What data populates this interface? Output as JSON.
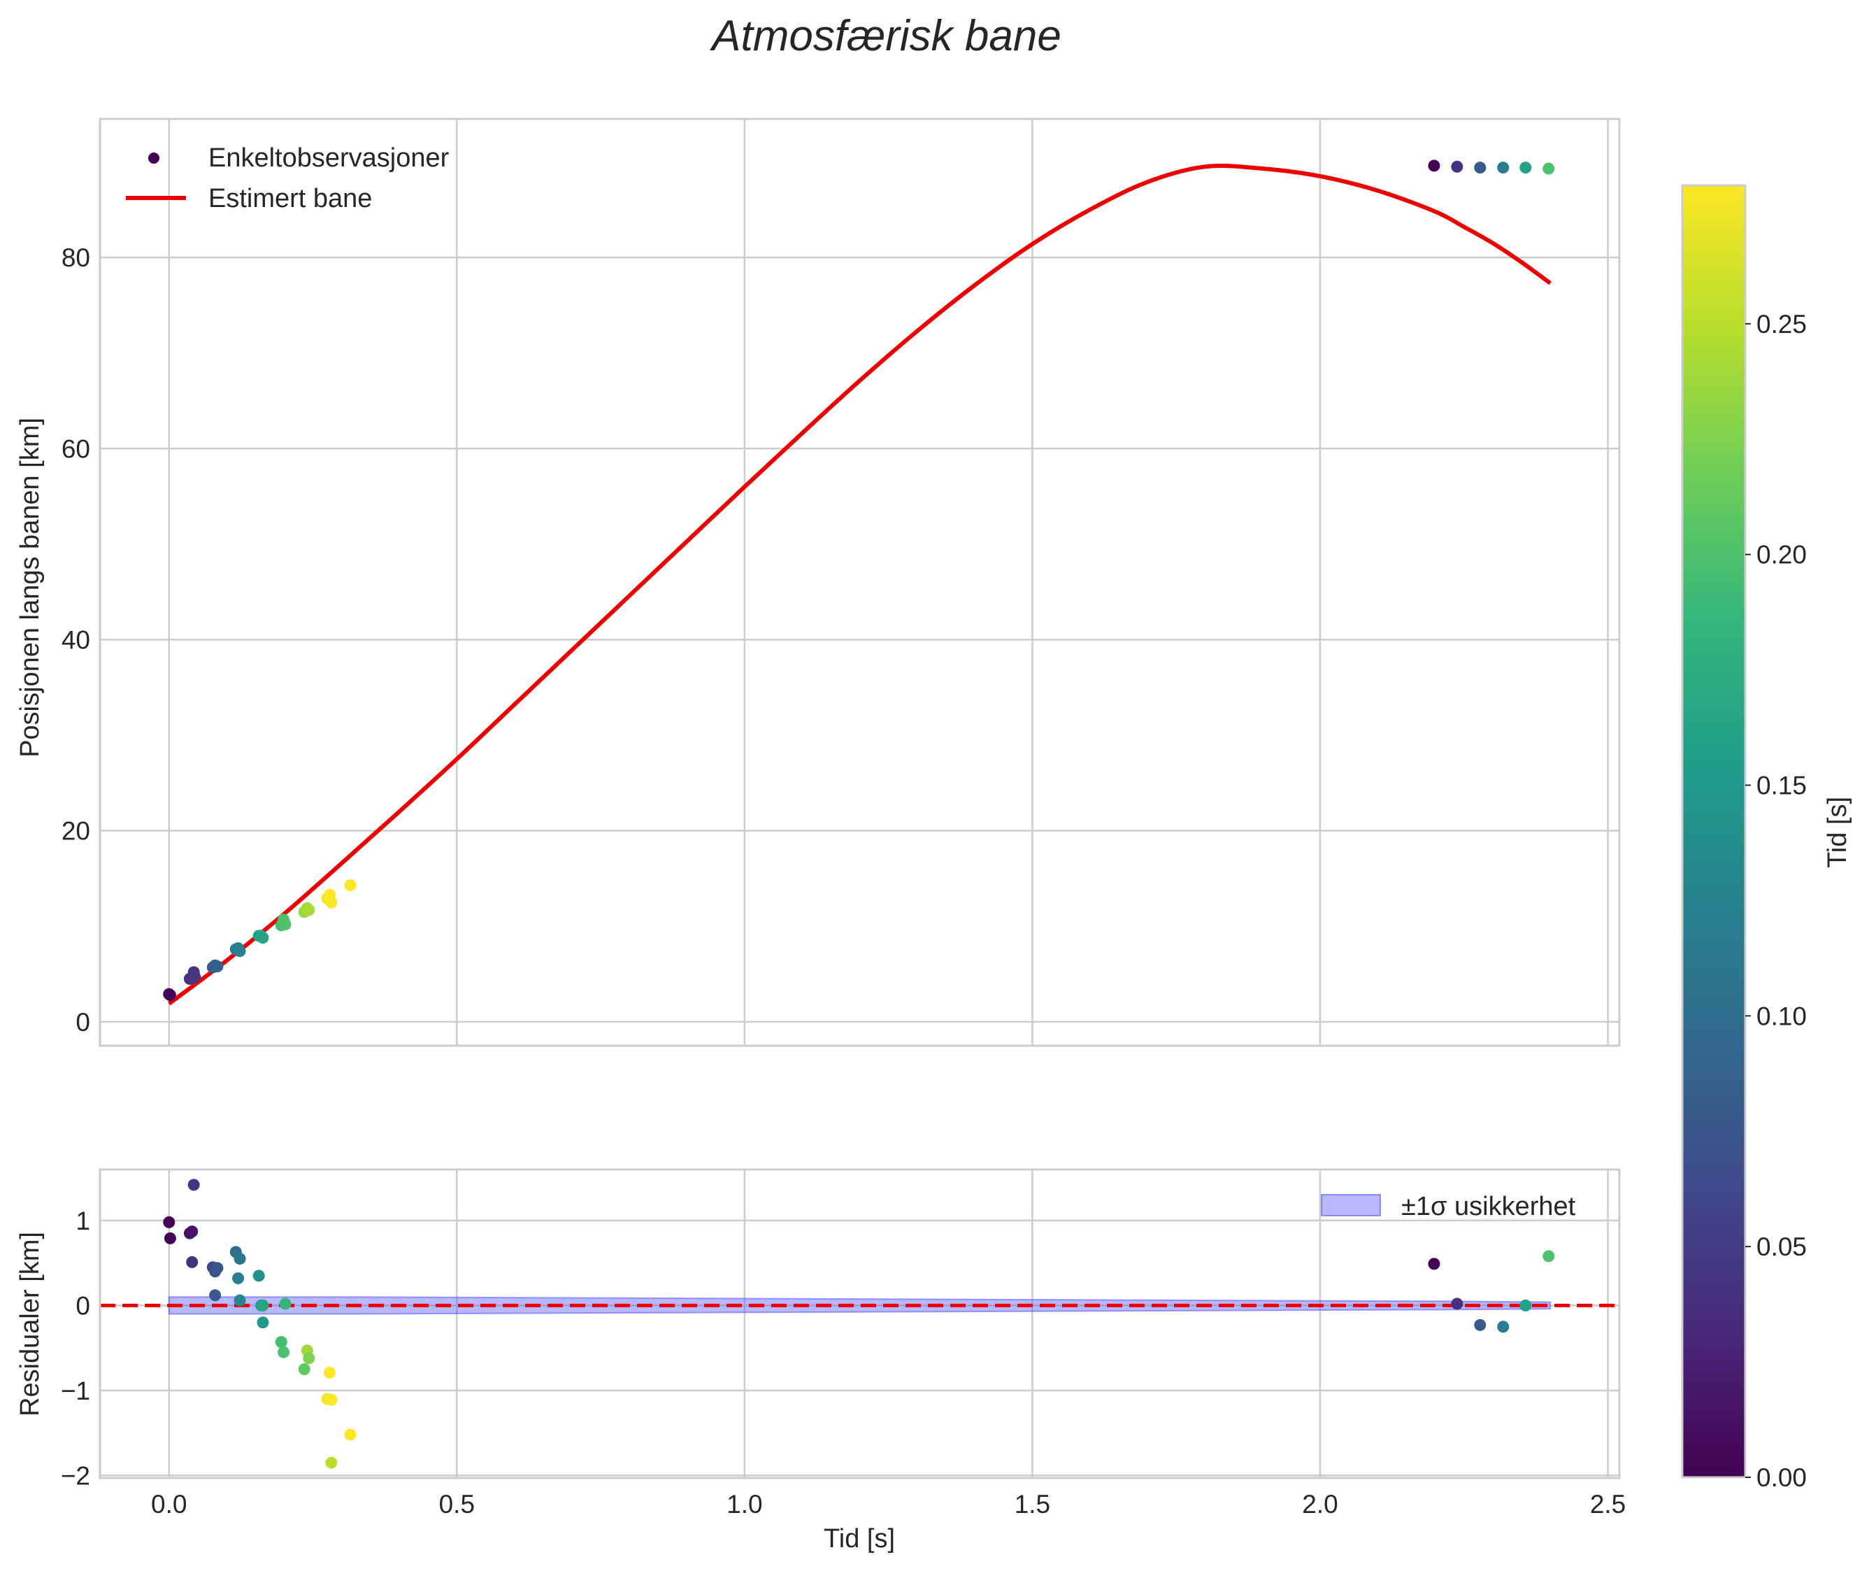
{
  "chart_data": [
    {
      "type": "scatter",
      "title": "Atmosfærisk bane",
      "xlabel": "",
      "ylabel": "Posisjonen langs banen [km]",
      "xlim": [
        -0.12,
        2.52
      ],
      "ylim": [
        -2.5,
        94.5
      ],
      "xticks": [
        0.0,
        0.5,
        1.0,
        1.5,
        2.0,
        2.5
      ],
      "yticks": [
        0,
        20,
        40,
        60,
        80
      ],
      "ytick_labels": [
        "0",
        "20",
        "40",
        "60",
        "80"
      ],
      "legend_location": "upper-left",
      "series": [
        {
          "name": "Enkeltobservasjoner",
          "kind": "scatter",
          "colored_by": "Tid [s]",
          "points": [
            {
              "x": 0.0,
              "y": 2.9,
              "c": 0.0
            },
            {
              "x": 0.002,
              "y": 2.8,
              "c": 0.002
            },
            {
              "x": 0.036,
              "y": 4.5,
              "c": 0.036
            },
            {
              "x": 0.04,
              "y": 4.6,
              "c": 0.04
            },
            {
              "x": 0.043,
              "y": 5.2,
              "c": 0.043
            },
            {
              "x": 0.045,
              "y": 4.7,
              "c": 0.045
            },
            {
              "x": 0.076,
              "y": 5.7,
              "c": 0.076
            },
            {
              "x": 0.08,
              "y": 5.9,
              "c": 0.08
            },
            {
              "x": 0.084,
              "y": 5.8,
              "c": 0.084
            },
            {
              "x": 0.116,
              "y": 7.6,
              "c": 0.116
            },
            {
              "x": 0.12,
              "y": 7.7,
              "c": 0.12
            },
            {
              "x": 0.123,
              "y": 7.4,
              "c": 0.123
            },
            {
              "x": 0.156,
              "y": 9.0,
              "c": 0.156
            },
            {
              "x": 0.16,
              "y": 9.0,
              "c": 0.16
            },
            {
              "x": 0.163,
              "y": 8.8,
              "c": 0.163
            },
            {
              "x": 0.195,
              "y": 10.1,
              "c": 0.195
            },
            {
              "x": 0.199,
              "y": 10.7,
              "c": 0.199
            },
            {
              "x": 0.202,
              "y": 10.2,
              "c": 0.202
            },
            {
              "x": 0.235,
              "y": 11.5,
              "c": 0.235
            },
            {
              "x": 0.24,
              "y": 11.9,
              "c": 0.24
            },
            {
              "x": 0.243,
              "y": 11.7,
              "c": 0.243
            },
            {
              "x": 0.275,
              "y": 12.9,
              "c": 0.275
            },
            {
              "x": 0.279,
              "y": 13.3,
              "c": 0.279
            },
            {
              "x": 0.282,
              "y": 12.5,
              "c": 0.282
            },
            {
              "x": 0.315,
              "y": 14.3,
              "c": 0.28
            },
            {
              "x": 2.198,
              "y": 89.6,
              "c": 0.0
            },
            {
              "x": 2.238,
              "y": 89.5,
              "c": 0.04
            },
            {
              "x": 2.278,
              "y": 89.4,
              "c": 0.08
            },
            {
              "x": 2.318,
              "y": 89.4,
              "c": 0.12
            },
            {
              "x": 2.357,
              "y": 89.4,
              "c": 0.16
            },
            {
              "x": 2.397,
              "y": 89.3,
              "c": 0.2
            }
          ]
        },
        {
          "name": "Estimert bane",
          "kind": "line",
          "color": "#ee0000",
          "x": [
            0.0,
            0.1,
            0.2,
            0.3,
            0.4,
            0.5,
            0.6,
            0.7,
            0.8,
            0.9,
            1.0,
            1.1,
            1.2,
            1.3,
            1.4,
            1.5,
            1.6,
            1.7,
            1.8,
            1.9,
            2.0,
            2.1,
            2.2,
            2.25,
            2.3,
            2.35,
            2.4
          ],
          "y": [
            1.9,
            6.4,
            11.3,
            16.6,
            22.0,
            27.5,
            33.2,
            38.9,
            44.6,
            50.3,
            56.0,
            61.6,
            67.1,
            72.3,
            77.1,
            81.4,
            85.0,
            87.9,
            89.5,
            89.3,
            88.5,
            87.0,
            84.8,
            83.2,
            81.5,
            79.5,
            77.3
          ]
        }
      ]
    },
    {
      "type": "scatter",
      "title": "",
      "xlabel": "Tid [s]",
      "ylabel": "Residualer [km]",
      "xlim": [
        -0.12,
        2.52
      ],
      "ylim": [
        -2.03,
        1.6
      ],
      "xticks": [
        0.0,
        0.5,
        1.0,
        1.5,
        2.0,
        2.5
      ],
      "xtick_labels": [
        "0.0",
        "0.5",
        "1.0",
        "1.5",
        "2.0",
        "2.5"
      ],
      "yticks": [
        1,
        0,
        -1,
        -2
      ],
      "ytick_labels": [
        "1",
        "0",
        "−1",
        "−2"
      ],
      "legend_location": "upper-right",
      "zero_line": {
        "y": 0,
        "color": "#ee0000",
        "style": "dashed"
      },
      "uncertainty_band": {
        "name": "±1σ usikkerhet",
        "color": "#5555ff",
        "x": [
          0.0,
          0.3,
          2.2,
          2.4
        ],
        "half_width": [
          0.1,
          0.1,
          0.05,
          0.04
        ]
      },
      "series": [
        {
          "name": "Residualer",
          "kind": "scatter",
          "colored_by": "Tid [s]",
          "points": [
            {
              "x": 0.0,
              "y": 0.98,
              "c": 0.0
            },
            {
              "x": 0.002,
              "y": 0.79,
              "c": 0.002
            },
            {
              "x": 0.036,
              "y": 0.85,
              "c": 0.01
            },
            {
              "x": 0.04,
              "y": 0.87,
              "c": 0.015
            },
            {
              "x": 0.043,
              "y": 1.42,
              "c": 0.043
            },
            {
              "x": 0.04,
              "y": 0.51,
              "c": 0.04
            },
            {
              "x": 0.076,
              "y": 0.45,
              "c": 0.06
            },
            {
              "x": 0.08,
              "y": 0.4,
              "c": 0.07
            },
            {
              "x": 0.084,
              "y": 0.44,
              "c": 0.076
            },
            {
              "x": 0.08,
              "y": 0.12,
              "c": 0.08
            },
            {
              "x": 0.116,
              "y": 0.63,
              "c": 0.1
            },
            {
              "x": 0.123,
              "y": 0.55,
              "c": 0.11
            },
            {
              "x": 0.12,
              "y": 0.32,
              "c": 0.12
            },
            {
              "x": 0.123,
              "y": 0.06,
              "c": 0.13
            },
            {
              "x": 0.156,
              "y": 0.35,
              "c": 0.14
            },
            {
              "x": 0.16,
              "y": 0.0,
              "c": 0.16
            },
            {
              "x": 0.163,
              "y": -0.2,
              "c": 0.15
            },
            {
              "x": 0.163,
              "y": 0.0,
              "c": 0.165
            },
            {
              "x": 0.195,
              "y": -0.43,
              "c": 0.195
            },
            {
              "x": 0.199,
              "y": -0.55,
              "c": 0.199
            },
            {
              "x": 0.202,
              "y": 0.02,
              "c": 0.185
            },
            {
              "x": 0.235,
              "y": -0.75,
              "c": 0.21
            },
            {
              "x": 0.24,
              "y": -0.53,
              "c": 0.24
            },
            {
              "x": 0.243,
              "y": -0.62,
              "c": 0.225
            },
            {
              "x": 0.275,
              "y": -1.1,
              "c": 0.275
            },
            {
              "x": 0.279,
              "y": -0.79,
              "c": 0.279
            },
            {
              "x": 0.282,
              "y": -1.11,
              "c": 0.28
            },
            {
              "x": 0.282,
              "y": -1.85,
              "c": 0.25
            },
            {
              "x": 0.315,
              "y": -1.52,
              "c": 0.28
            },
            {
              "x": 2.198,
              "y": 0.49,
              "c": 0.0
            },
            {
              "x": 2.238,
              "y": 0.02,
              "c": 0.04
            },
            {
              "x": 2.278,
              "y": -0.23,
              "c": 0.08
            },
            {
              "x": 2.318,
              "y": -0.25,
              "c": 0.12
            },
            {
              "x": 2.357,
              "y": 0.0,
              "c": 0.16
            },
            {
              "x": 2.397,
              "y": 0.58,
              "c": 0.2
            }
          ]
        }
      ]
    }
  ],
  "colorbar": {
    "label": "Tid [s]",
    "range": [
      0.0,
      0.28
    ],
    "ticks": [
      0.0,
      0.05,
      0.1,
      0.15,
      0.2,
      0.25
    ],
    "tick_labels": [
      "0.00",
      "0.05",
      "0.10",
      "0.15",
      "0.20",
      "0.25"
    ],
    "colormap": "viridis",
    "colormap_stops": [
      "#440154",
      "#482878",
      "#3e4989",
      "#31688e",
      "#26828e",
      "#1f9e89",
      "#35b779",
      "#6ece58",
      "#b5de2b",
      "#fde725"
    ]
  }
}
